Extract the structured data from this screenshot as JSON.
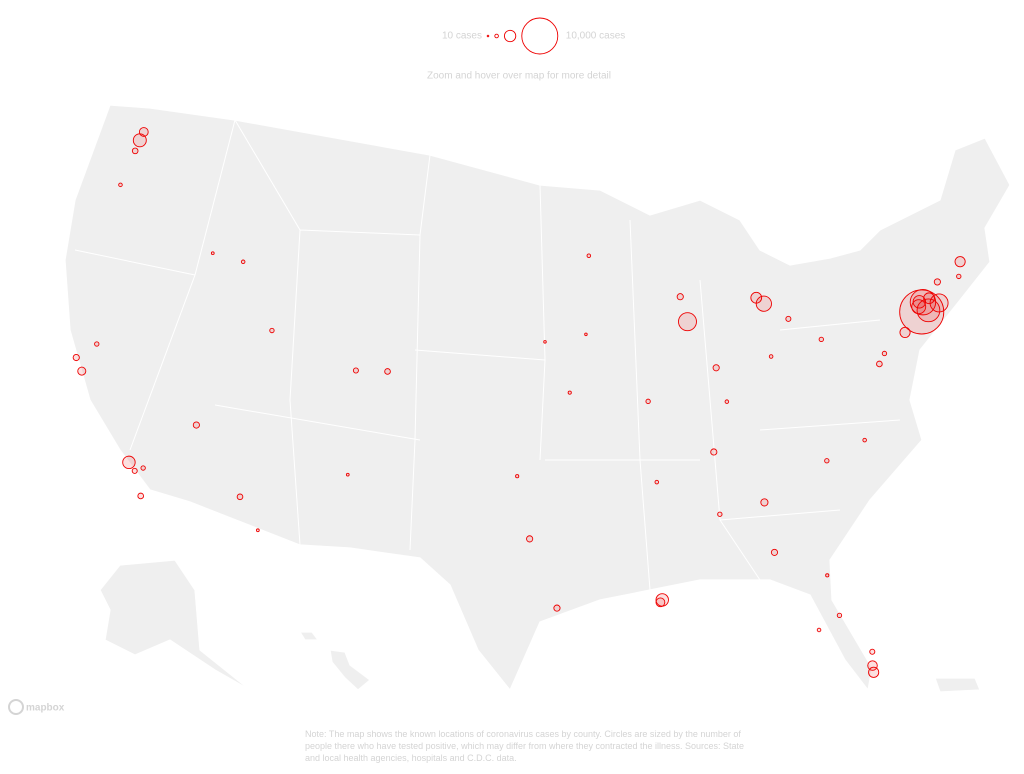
{
  "legend": {
    "items": [
      {
        "cases": 10,
        "label": "10 cases"
      },
      {
        "cases": 100
      },
      {
        "cases": 1000
      },
      {
        "cases": 10000,
        "label": "10,000 cases"
      }
    ]
  },
  "hint": "Zoom and hover over map for more detail",
  "map": {
    "points": [
      {
        "lon": -74.0,
        "lat": 40.7,
        "cases": 15000
      },
      {
        "lon": -73.8,
        "lat": 41.1,
        "cases": 5000
      },
      {
        "lon": -73.6,
        "lat": 40.7,
        "cases": 4000
      },
      {
        "lon": -72.9,
        "lat": 40.9,
        "cases": 2500
      },
      {
        "lon": -74.1,
        "lat": 40.95,
        "cases": 1500
      },
      {
        "lon": -74.0,
        "lat": 41.15,
        "cases": 1200
      },
      {
        "lon": -122.3,
        "lat": 47.6,
        "cases": 1300
      },
      {
        "lon": -122.2,
        "lat": 48.0,
        "cases": 600
      },
      {
        "lon": -122.4,
        "lat": 47.1,
        "cases": 250
      },
      {
        "lon": -122.7,
        "lat": 45.5,
        "cases": 100
      },
      {
        "lon": -122.4,
        "lat": 37.8,
        "cases": 300
      },
      {
        "lon": -121.9,
        "lat": 37.3,
        "cases": 500
      },
      {
        "lon": -121.5,
        "lat": 38.6,
        "cases": 150
      },
      {
        "lon": -118.2,
        "lat": 34.0,
        "cases": 1200
      },
      {
        "lon": -117.2,
        "lat": 32.7,
        "cases": 250
      },
      {
        "lon": -117.8,
        "lat": 33.7,
        "cases": 200
      },
      {
        "lon": -117.4,
        "lat": 33.9,
        "cases": 150
      },
      {
        "lon": -115.1,
        "lat": 36.2,
        "cases": 300
      },
      {
        "lon": -112.1,
        "lat": 33.5,
        "cases": 250
      },
      {
        "lon": -110.9,
        "lat": 32.2,
        "cases": 60
      },
      {
        "lon": -105.0,
        "lat": 39.7,
        "cases": 250
      },
      {
        "lon": -106.8,
        "lat": 39.6,
        "cases": 200
      },
      {
        "lon": -106.6,
        "lat": 35.1,
        "cases": 60
      },
      {
        "lon": -111.9,
        "lat": 40.8,
        "cases": 150
      },
      {
        "lon": -114.3,
        "lat": 43.5,
        "cases": 100
      },
      {
        "lon": -116.2,
        "lat": 43.6,
        "cases": 60
      },
      {
        "lon": -87.6,
        "lat": 41.9,
        "cases": 2500
      },
      {
        "lon": -83.0,
        "lat": 42.3,
        "cases": 1800
      },
      {
        "lon": -83.4,
        "lat": 42.6,
        "cases": 900
      },
      {
        "lon": -81.7,
        "lat": 41.5,
        "cases": 200
      },
      {
        "lon": -83.0,
        "lat": 40.0,
        "cases": 100
      },
      {
        "lon": -86.2,
        "lat": 39.8,
        "cases": 300
      },
      {
        "lon": -87.9,
        "lat": 43.0,
        "cases": 300
      },
      {
        "lon": -93.3,
        "lat": 45.0,
        "cases": 100
      },
      {
        "lon": -90.2,
        "lat": 38.6,
        "cases": 150
      },
      {
        "lon": -94.6,
        "lat": 39.1,
        "cases": 80
      },
      {
        "lon": -96.0,
        "lat": 41.3,
        "cases": 50
      },
      {
        "lon": -93.6,
        "lat": 41.6,
        "cases": 50
      },
      {
        "lon": -97.5,
        "lat": 35.5,
        "cases": 80
      },
      {
        "lon": -90.1,
        "lat": 30.0,
        "cases": 1200
      },
      {
        "lon": -90.2,
        "lat": 29.9,
        "cases": 600
      },
      {
        "lon": -95.4,
        "lat": 29.8,
        "cases": 300
      },
      {
        "lon": -96.8,
        "lat": 32.8,
        "cases": 300
      },
      {
        "lon": -84.4,
        "lat": 33.8,
        "cases": 400
      },
      {
        "lon": -84.2,
        "lat": 31.6,
        "cases": 300
      },
      {
        "lon": -86.8,
        "lat": 33.5,
        "cases": 150
      },
      {
        "lon": -80.2,
        "lat": 25.8,
        "cases": 800
      },
      {
        "lon": -80.2,
        "lat": 26.1,
        "cases": 700
      },
      {
        "lon": -80.1,
        "lat": 26.7,
        "cases": 200
      },
      {
        "lon": -81.4,
        "lat": 28.5,
        "cases": 150
      },
      {
        "lon": -82.5,
        "lat": 28.0,
        "cases": 100
      },
      {
        "lon": -81.7,
        "lat": 30.3,
        "cases": 80
      },
      {
        "lon": -86.8,
        "lat": 36.2,
        "cases": 300
      },
      {
        "lon": -90.0,
        "lat": 35.1,
        "cases": 100
      },
      {
        "lon": -85.8,
        "lat": 38.3,
        "cases": 100
      },
      {
        "lon": -80.8,
        "lat": 35.2,
        "cases": 150
      },
      {
        "lon": -78.6,
        "lat": 35.8,
        "cases": 100
      },
      {
        "lon": -77.0,
        "lat": 38.9,
        "cases": 250
      },
      {
        "lon": -76.6,
        "lat": 39.3,
        "cases": 150
      },
      {
        "lon": -75.2,
        "lat": 40.0,
        "cases": 800
      },
      {
        "lon": -80.0,
        "lat": 40.4,
        "cases": 150
      },
      {
        "lon": -71.1,
        "lat": 42.4,
        "cases": 800
      },
      {
        "lon": -71.4,
        "lat": 41.8,
        "cases": 150
      },
      {
        "lon": -72.7,
        "lat": 41.8,
        "cases": 300
      },
      {
        "lon": -73.4,
        "lat": 41.2,
        "cases": 900
      }
    ]
  },
  "attribution": "mapbox",
  "note": "Note: The map shows the known locations of coronavirus cases by county. Circles are sized by the number of people there who have tested positive, which may differ from where they contracted the illness. Sources: State and local health agencies, hospitals and C.D.C. data."
}
